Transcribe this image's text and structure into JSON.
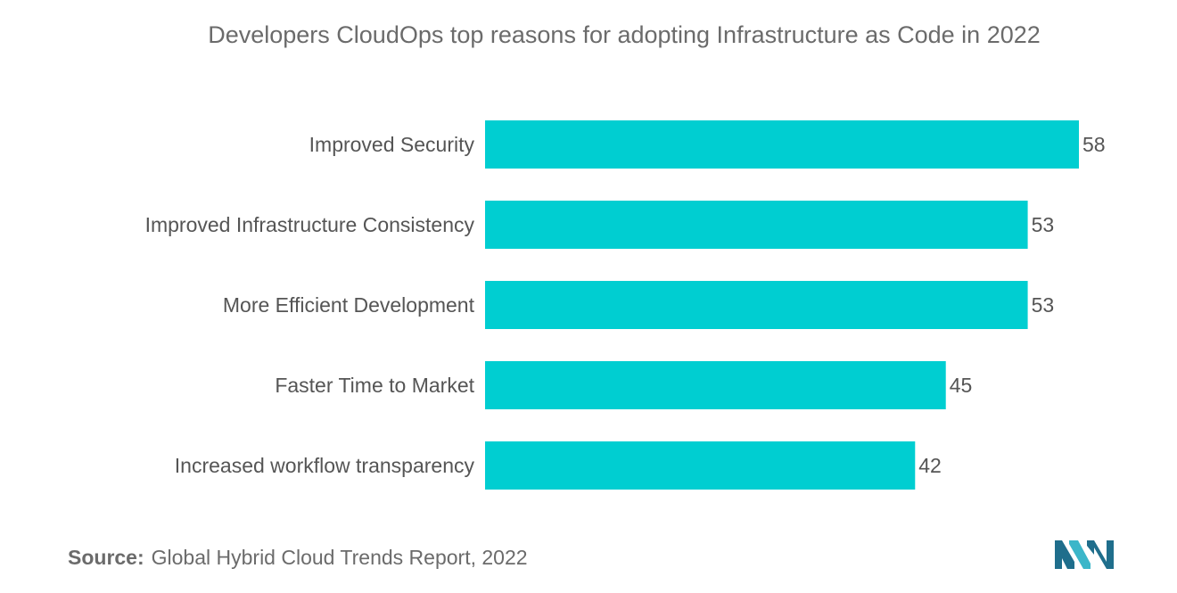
{
  "chart_data": {
    "type": "bar",
    "orientation": "horizontal",
    "title": "Developers  CloudOps top reasons for adopting Infrastructure as Code in 2022",
    "categories": [
      "Improved Security",
      "Improved Infrastructure Consistency",
      "More Efficient Development",
      "Faster Time to Market",
      "Increased workflow transparency"
    ],
    "values": [
      58,
      53,
      53,
      45,
      42
    ],
    "xlim": [
      0,
      58
    ],
    "grid": false,
    "legend": "none",
    "bar_color": "#00CED1"
  },
  "source": {
    "label": "Source:",
    "text": "Global Hybrid Cloud Trends Report, 2022"
  },
  "logo": {
    "icon": "brand-logo-icon",
    "colors": [
      "#1F6E8C",
      "#3BB6C9"
    ]
  }
}
